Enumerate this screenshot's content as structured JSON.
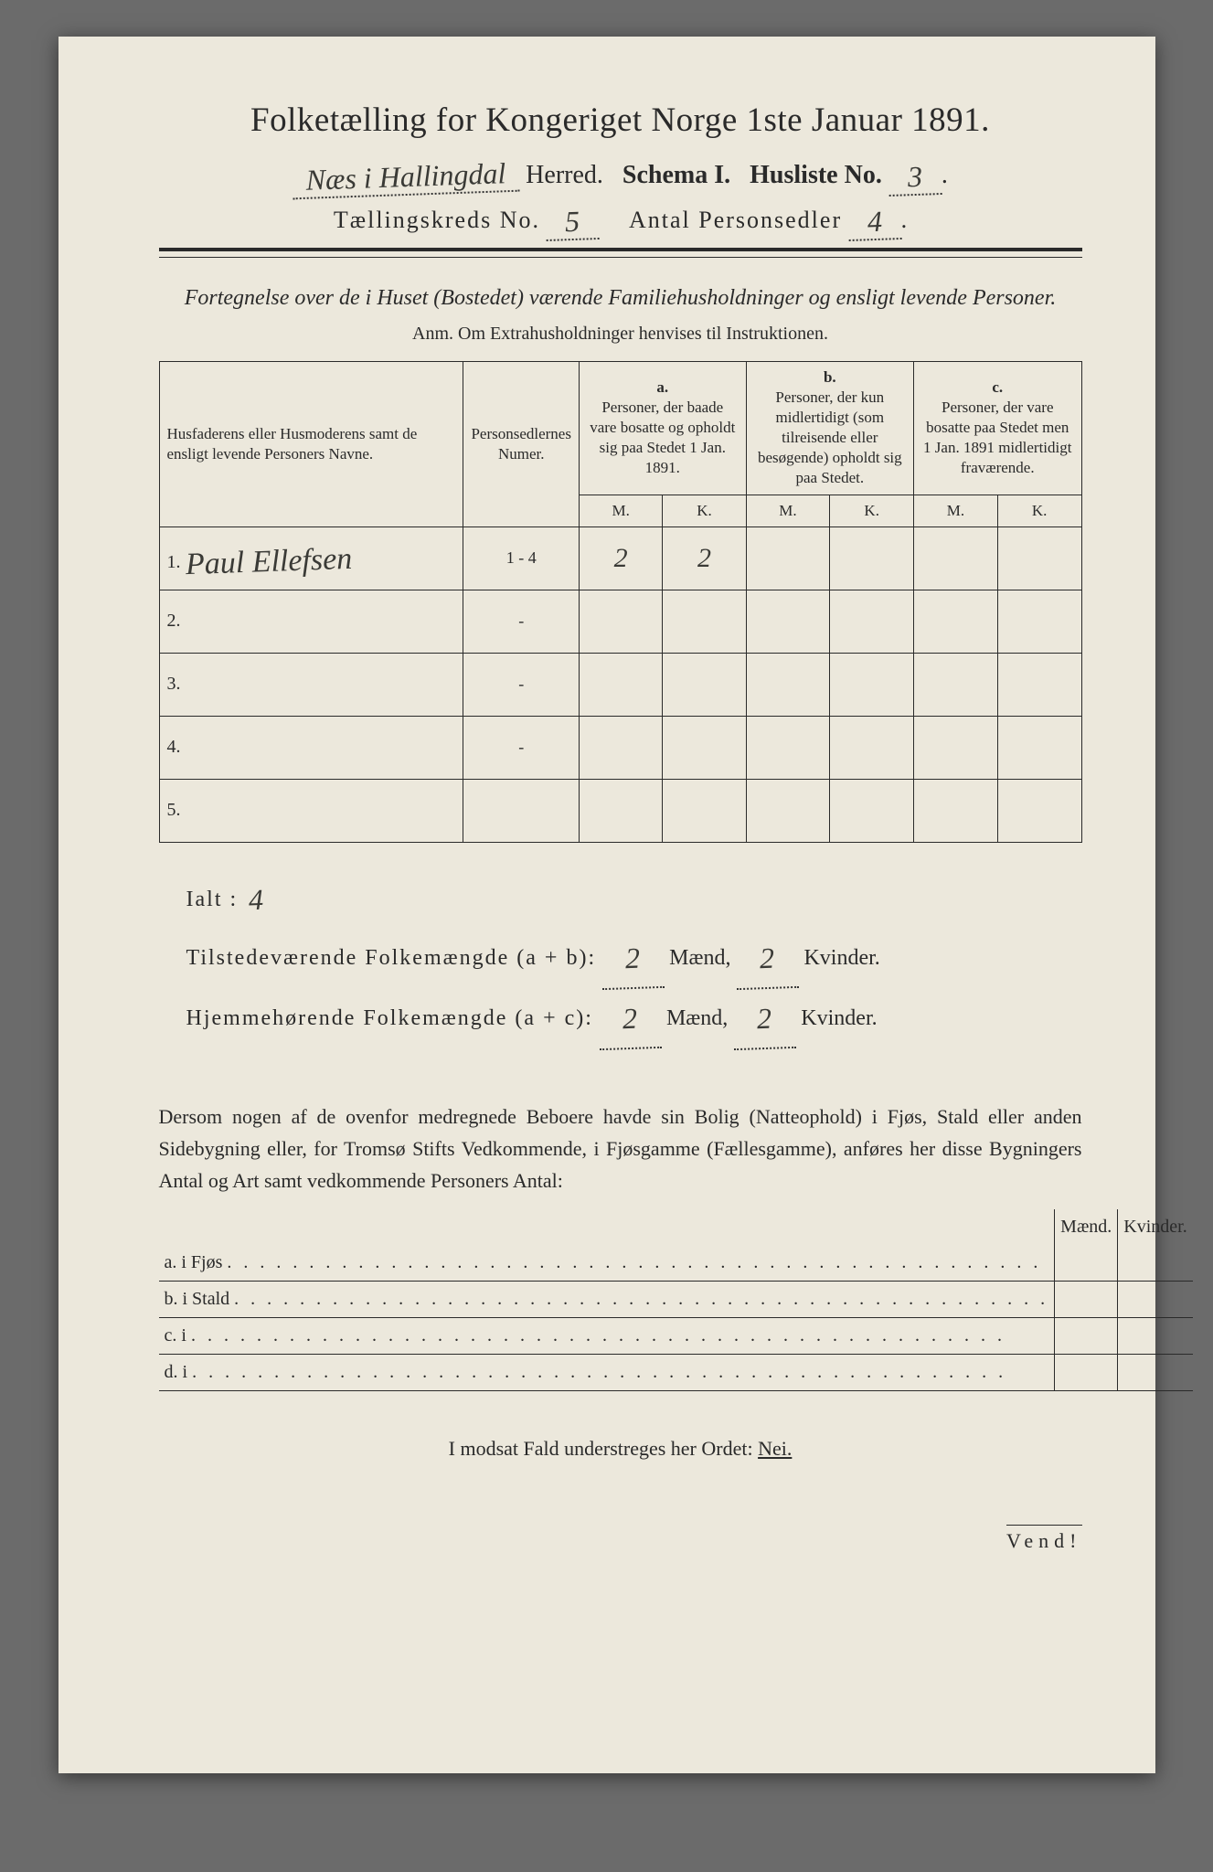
{
  "title": "Folketælling for Kongeriget Norge 1ste Januar 1891.",
  "header": {
    "herred_hw": "Næs i Hallingdal",
    "herred_label": "Herred.",
    "schema_label": "Schema I.",
    "husliste_label": "Husliste No.",
    "husliste_no_hw": "3",
    "kreds_label": "Tællingskreds No.",
    "kreds_no_hw": "5",
    "antal_label": "Antal Personsedler",
    "antal_hw": "4"
  },
  "subtitle": "Fortegnelse over de i Huset (Bostedet) værende Familiehusholdninger og ensligt levende Personer.",
  "anm": "Anm. Om Extrahusholdninger henvises til Instruktionen.",
  "table": {
    "headers": {
      "name": "Husfaderens eller Husmoderens samt de ensligt levende Personers Navne.",
      "num": "Personsedlernes Numer.",
      "a_letter": "a.",
      "a": "Personer, der baade vare bosatte og opholdt sig paa Stedet 1 Jan. 1891.",
      "b_letter": "b.",
      "b": "Personer, der kun midlertidigt (som tilreisende eller besøgende) opholdt sig paa Stedet.",
      "c_letter": "c.",
      "c": "Personer, der vare bosatte paa Stedet men 1 Jan. 1891 midlertidigt fraværende.",
      "M": "M.",
      "K": "K."
    },
    "rows": [
      {
        "n": "1.",
        "name_hw": "Paul Ellefsen",
        "num_hw": "1 - 4",
        "aM": "2",
        "aK": "2",
        "bM": "",
        "bK": "",
        "cM": "",
        "cK": ""
      },
      {
        "n": "2.",
        "name_hw": "",
        "num_hw": "-",
        "aM": "",
        "aK": "",
        "bM": "",
        "bK": "",
        "cM": "",
        "cK": ""
      },
      {
        "n": "3.",
        "name_hw": "",
        "num_hw": "-",
        "aM": "",
        "aK": "",
        "bM": "",
        "bK": "",
        "cM": "",
        "cK": ""
      },
      {
        "n": "4.",
        "name_hw": "",
        "num_hw": "-",
        "aM": "",
        "aK": "",
        "bM": "",
        "bK": "",
        "cM": "",
        "cK": ""
      },
      {
        "n": "5.",
        "name_hw": "",
        "num_hw": "",
        "aM": "",
        "aK": "",
        "bM": "",
        "bK": "",
        "cM": "",
        "cK": ""
      }
    ]
  },
  "totals": {
    "ialt_label": "Ialt :",
    "ialt_hw": "4",
    "tilst_label": "Tilstedeværende Folkemængde (a + b):",
    "tilst_m_hw": "2",
    "tilst_k_hw": "2",
    "hjem_label": "Hjemmehørende Folkemængde (a + c):",
    "hjem_m_hw": "2",
    "hjem_k_hw": "2",
    "maend": "Mænd,",
    "kvinder": "Kvinder."
  },
  "para": "Dersom nogen af de ovenfor medregnede Beboere havde sin Bolig (Natteophold) i Fjøs, Stald eller anden Sidebygning eller, for Tromsø Stifts Vedkommende, i Fjøsgamme (Fællesgamme), anføres her disse Bygningers Antal og Art samt vedkommende Personers Antal:",
  "outbuildings": {
    "head_m": "Mænd.",
    "head_k": "Kvinder.",
    "rows": [
      {
        "lead": "a.  i      Fjøs"
      },
      {
        "lead": "b.  i      Stald"
      },
      {
        "lead": "c.  i"
      },
      {
        "lead": "d.  i"
      }
    ]
  },
  "footer": {
    "line": "I modsat Fald understreges her Ordet:",
    "nei": "Nei.",
    "vend": "Vend!"
  },
  "colors": {
    "paper": "#ece8dc",
    "ink": "#2a2a2a",
    "hw": "#3a3a36",
    "bg": "#6b6b6b"
  }
}
